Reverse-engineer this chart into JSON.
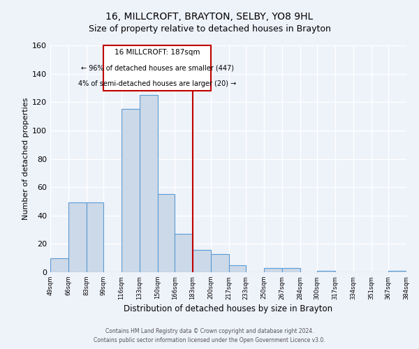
{
  "title": "16, MILLCROFT, BRAYTON, SELBY, YO8 9HL",
  "subtitle": "Size of property relative to detached houses in Brayton",
  "xlabel": "Distribution of detached houses by size in Brayton",
  "ylabel": "Number of detached properties",
  "bar_edges": [
    49,
    66,
    83,
    99,
    116,
    133,
    150,
    166,
    183,
    200,
    217,
    233,
    250,
    267,
    284,
    300,
    317,
    334,
    351,
    367,
    384
  ],
  "bar_heights": [
    10,
    49,
    49,
    0,
    115,
    125,
    55,
    27,
    16,
    13,
    5,
    0,
    3,
    3,
    0,
    1,
    0,
    0,
    0,
    1
  ],
  "tick_labels": [
    "49sqm",
    "66sqm",
    "83sqm",
    "99sqm",
    "116sqm",
    "133sqm",
    "150sqm",
    "166sqm",
    "183sqm",
    "200sqm",
    "217sqm",
    "233sqm",
    "250sqm",
    "267sqm",
    "284sqm",
    "300sqm",
    "317sqm",
    "334sqm",
    "351sqm",
    "367sqm",
    "384sqm"
  ],
  "bar_color": "#ccd9e8",
  "bar_edge_color": "#5b9bd5",
  "vline_x": 183,
  "vline_color": "#c00000",
  "ylim": [
    0,
    160
  ],
  "yticks": [
    0,
    20,
    40,
    60,
    80,
    100,
    120,
    140,
    160
  ],
  "annotation_title": "16 MILLCROFT: 187sqm",
  "annotation_line1": "← 96% of detached houses are smaller (447)",
  "annotation_line2": "4% of semi-detached houses are larger (20) →",
  "annotation_box_color": "#ffffff",
  "annotation_box_edgecolor": "#c00000",
  "footer1": "Contains HM Land Registry data © Crown copyright and database right 2024.",
  "footer2": "Contains public sector information licensed under the Open Government Licence v3.0.",
  "background_color": "#eef2f9",
  "grid_color": "#ffffff",
  "title_fontsize": 10,
  "subtitle_fontsize": 9,
  "ylabel_fontsize": 8,
  "xlabel_fontsize": 8.5
}
